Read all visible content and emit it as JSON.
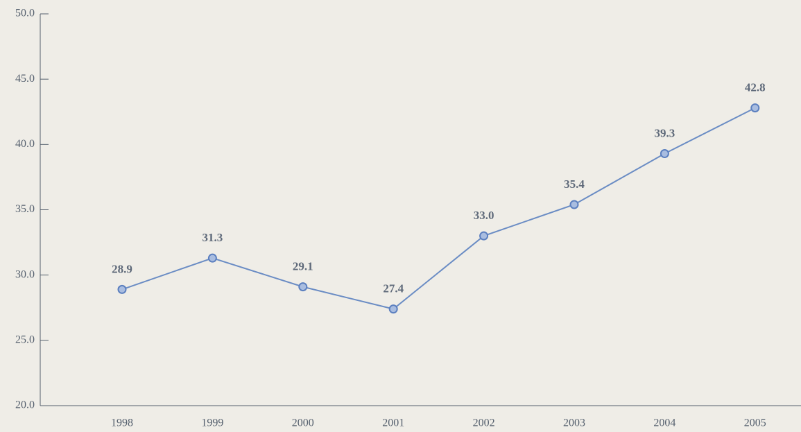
{
  "chart_data": {
    "type": "line",
    "categories": [
      "1998",
      "1999",
      "2000",
      "2001",
      "2002",
      "2003",
      "2004",
      "2005"
    ],
    "series": [
      {
        "color": "#6a8cc4",
        "values": [
          28.9,
          31.3,
          29.1,
          27.4,
          33.0,
          35.4,
          39.3,
          42.8
        ],
        "value_labels": [
          "28.9",
          "31.3",
          "29.1",
          "27.4",
          "33.0",
          "35.4",
          "39.3",
          "42.8"
        ]
      }
    ],
    "ylim": [
      20,
      50
    ],
    "yticks": [
      {
        "value": 20,
        "label": "20.0"
      },
      {
        "value": 25,
        "label": "25.0"
      },
      {
        "value": 30,
        "label": "30.0"
      },
      {
        "value": 35,
        "label": "35.0"
      },
      {
        "value": 40,
        "label": "40.0"
      },
      {
        "value": 45,
        "label": "45.0"
      },
      {
        "value": 50,
        "label": "50.0"
      }
    ]
  }
}
